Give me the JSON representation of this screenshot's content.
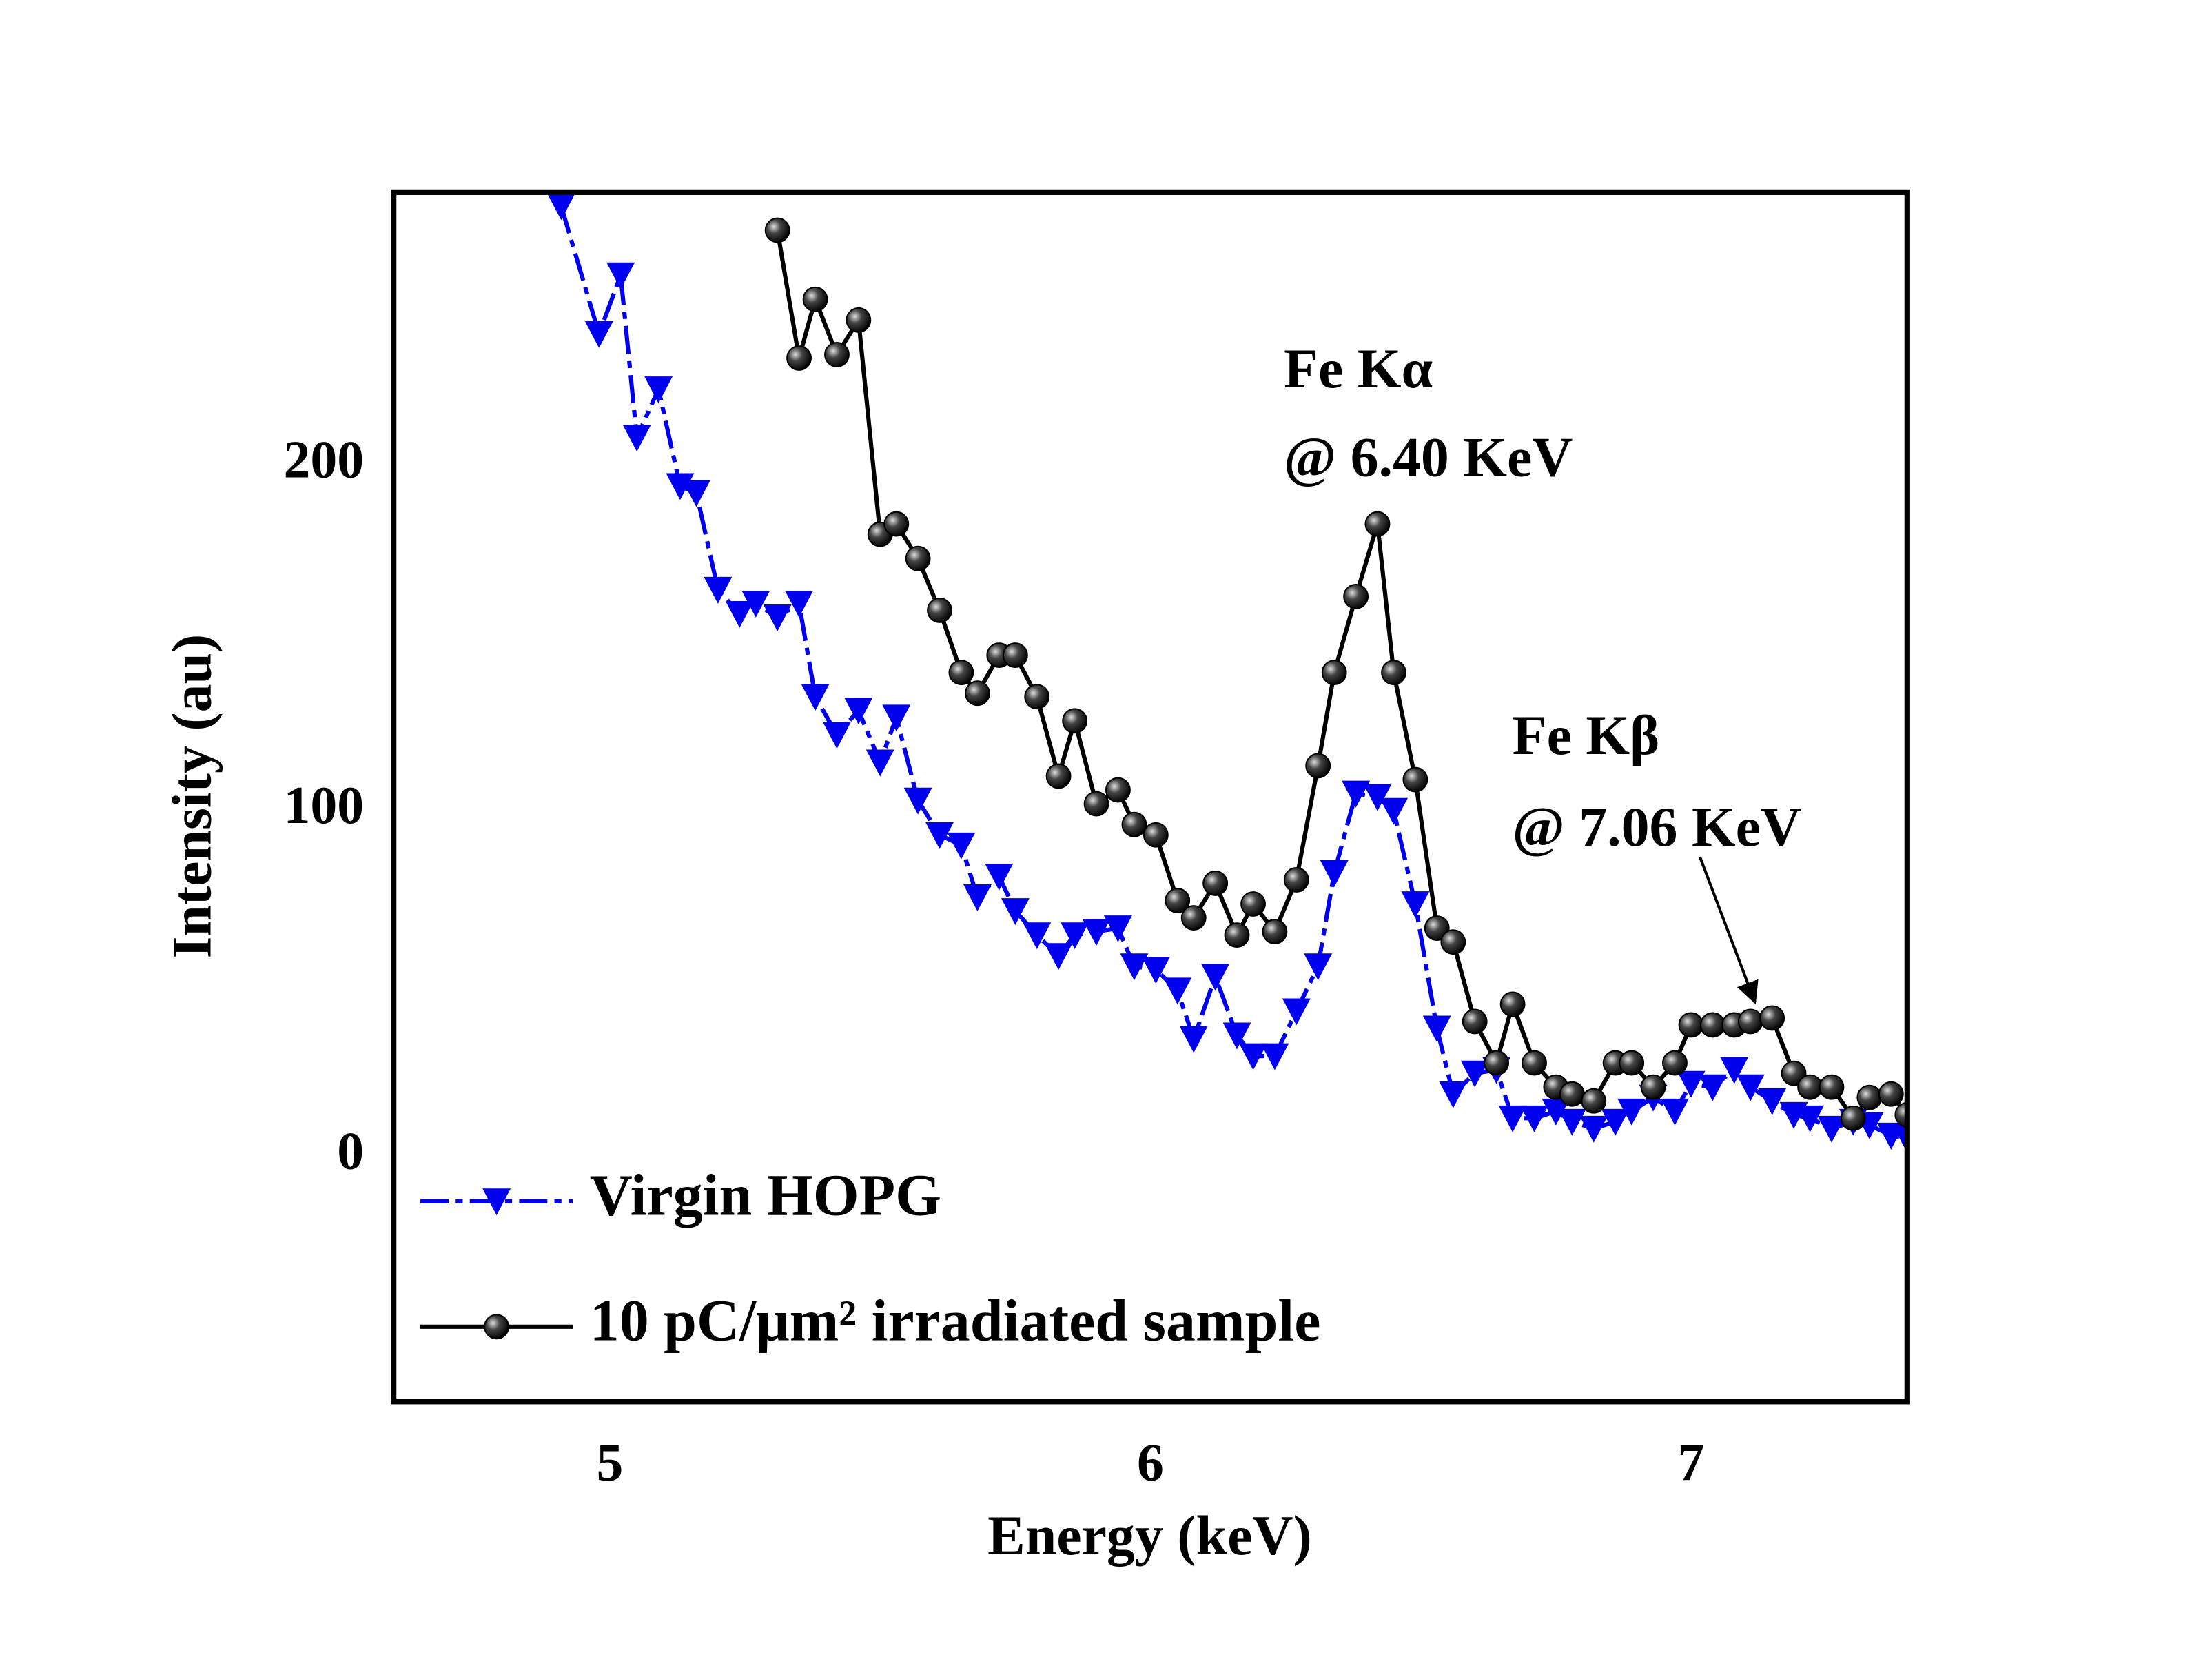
{
  "chart_data": {
    "type": "line",
    "xlabel": "Energy (keV)",
    "ylabel": "Intensity (au)",
    "x": [
      4.91,
      4.98,
      5.02,
      5.05,
      5.09,
      5.13,
      5.16,
      5.2,
      5.24,
      5.27,
      5.31,
      5.35,
      5.38,
      5.42,
      5.46,
      5.5,
      5.53,
      5.57,
      5.61,
      5.65,
      5.68,
      5.72,
      5.75,
      5.79,
      5.83,
      5.86,
      5.9,
      5.94,
      5.97,
      6.01,
      6.05,
      6.08,
      6.12,
      6.16,
      6.19,
      6.23,
      6.27,
      6.31,
      6.34,
      6.38,
      6.42,
      6.45,
      6.49,
      6.53,
      6.56,
      6.6,
      6.64,
      6.67,
      6.71,
      6.75,
      6.78,
      6.82,
      6.86,
      6.89,
      6.93,
      6.97,
      7.0,
      7.04,
      7.08,
      7.11,
      7.15,
      7.19,
      7.22,
      7.26,
      7.3,
      7.33,
      7.37,
      7.4
    ],
    "series": [
      {
        "name": "Virgin HOPG",
        "color": "#0000ee",
        "marker": "triangle-down",
        "values": [
          275,
          238,
          255,
          208,
          222,
          194,
          192,
          164,
          157,
          160,
          156,
          160,
          133,
          122,
          129,
          114,
          127,
          103,
          93,
          90,
          75,
          81,
          71,
          64,
          58,
          64,
          65,
          66,
          55,
          54,
          48,
          34,
          52,
          35,
          29,
          29,
          42,
          55,
          82,
          105,
          104,
          100,
          73,
          37,
          18,
          24,
          25,
          11,
          11,
          13,
          10,
          8,
          10,
          13,
          17,
          13,
          21,
          20,
          25,
          20,
          16,
          12,
          11,
          8,
          10,
          9,
          6,
          5
        ]
      },
      {
        "name": "10 pC/μm² irradiated sample",
        "color": "#000000",
        "marker": "sphere",
        "values": [
          null,
          null,
          null,
          null,
          null,
          null,
          null,
          null,
          null,
          null,
          268,
          231,
          248,
          232,
          242,
          180,
          183,
          173,
          158,
          140,
          134,
          145,
          145,
          133,
          110,
          126,
          102,
          106,
          96,
          93,
          74,
          69,
          79,
          64,
          73,
          65,
          80,
          113,
          140,
          162,
          183,
          140,
          109,
          66,
          62,
          39,
          27,
          44,
          27,
          20,
          18,
          16,
          27,
          27,
          20,
          27,
          38,
          38,
          38,
          39,
          40,
          24,
          20,
          20,
          11,
          17,
          18,
          12
        ]
      }
    ],
    "annotations": [
      "Fe Kα",
      "@ 6.40 KeV",
      "Fe Kβ",
      "@ 7.06 KeV"
    ],
    "xlim": [
      4.6,
      7.4
    ],
    "xticks": [
      5,
      6,
      7
    ],
    "ylim": [
      -71,
      279
    ],
    "yticks": [
      0,
      100,
      200
    ],
    "legend": "lower left",
    "grid": false
  }
}
